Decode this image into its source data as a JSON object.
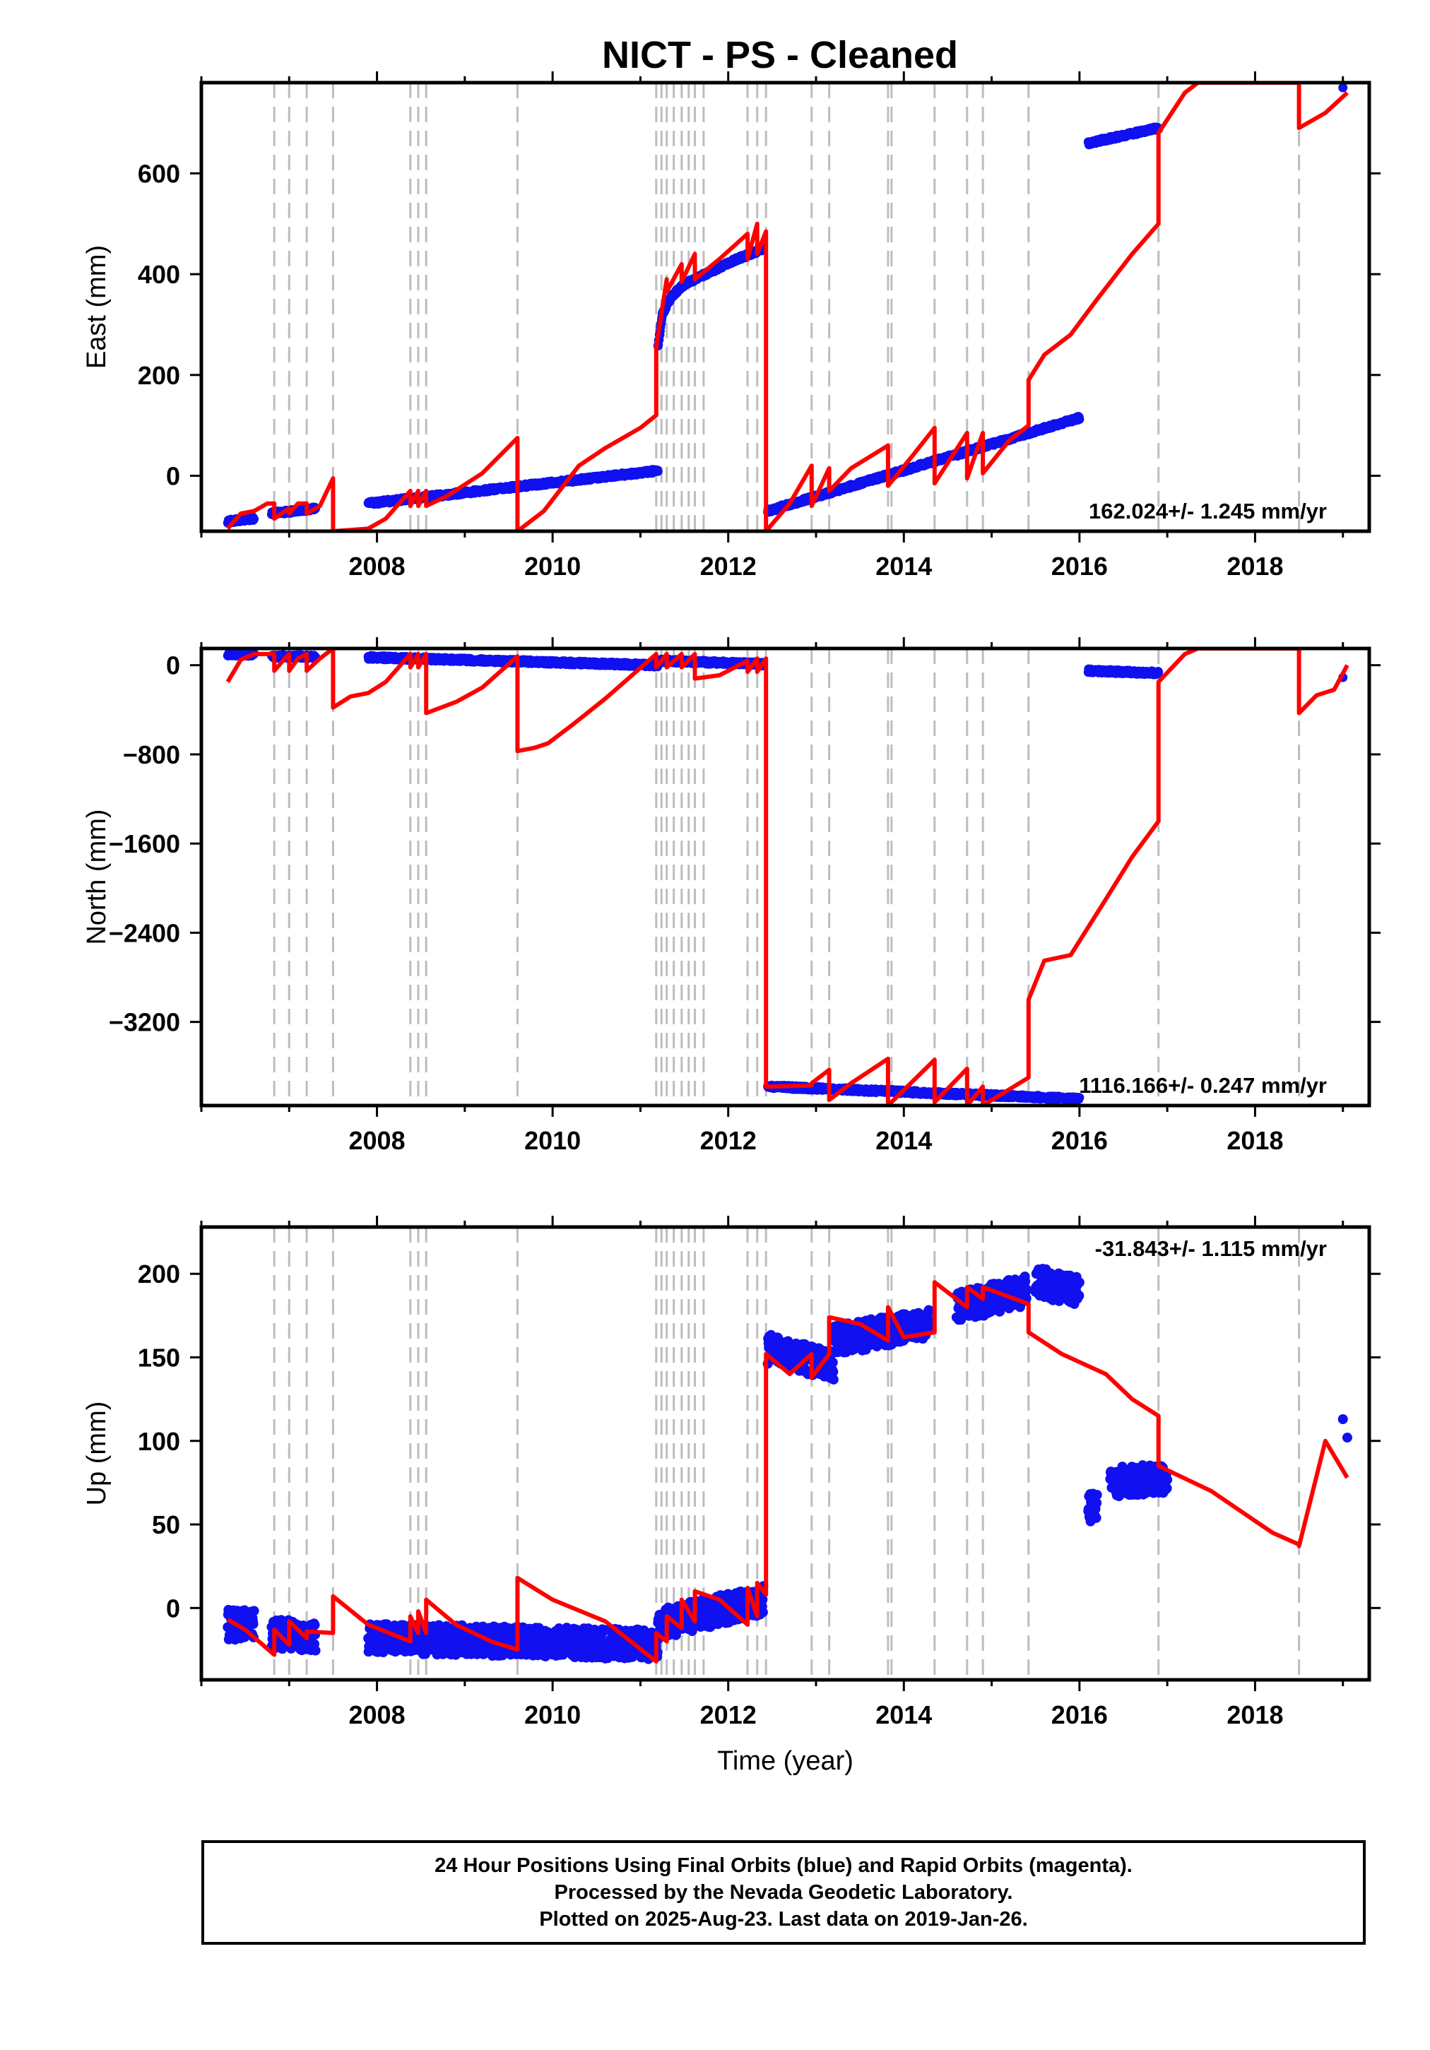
{
  "chart_data": {
    "title": "NICT  - PS - Cleaned",
    "x_axis": {
      "label": "Time (year)",
      "range": [
        2006.0,
        2019.3
      ],
      "ticks": [
        2008,
        2010,
        2012,
        2014,
        2016,
        2018
      ],
      "tick_labels": [
        "2008",
        "2010",
        "2012",
        "2014",
        "2016",
        "2018"
      ]
    },
    "equipment_change_lines": [
      2006.83,
      2007.0,
      2007.2,
      2007.5,
      2008.38,
      2008.47,
      2008.56,
      2009.6,
      2011.18,
      2011.24,
      2011.3,
      2011.38,
      2011.47,
      2011.55,
      2011.62,
      2011.72,
      2012.22,
      2012.33,
      2012.43,
      2012.95,
      2013.15,
      2013.82,
      2013.86,
      2014.35,
      2014.72,
      2014.9,
      2015.42,
      2016.9,
      2018.5
    ],
    "panels": [
      {
        "id": "east",
        "ylabel": "East (mm)",
        "ylim": [
          -110,
          780
        ],
        "yticks": [
          0,
          200,
          400,
          600
        ],
        "ytick_labels": [
          "0",
          "200",
          "400",
          "600"
        ],
        "rate_label": "162.024+/- 1.245 mm/yr",
        "rate_position": "bottom-right",
        "observations": [
          {
            "x": [
              2006.3,
              2006.6
            ],
            "y": [
              -90,
              -85
            ]
          },
          {
            "x": [
              2006.8,
              2007.3
            ],
            "y": [
              -75,
              -65
            ]
          },
          {
            "x": [
              2007.9,
              2011.2
            ],
            "y": [
              -55,
              10
            ]
          },
          {
            "x": [
              2011.2,
              2011.25,
              2011.35,
              2011.5,
              2011.8,
              2012.1,
              2012.4
            ],
            "y": [
              255,
              320,
              355,
              380,
              405,
              430,
              450
            ]
          },
          {
            "x": [
              2012.45,
              2016.0
            ],
            "y": [
              -70,
              115
            ]
          },
          {
            "x": [
              2016.1,
              2016.9
            ],
            "y": [
              660,
              690
            ]
          },
          {
            "x": [
              2019.0
            ],
            "y": [
              770
            ]
          }
        ],
        "model": {
          "x": [
            2006.3,
            2006.45,
            2006.6,
            2006.75,
            2006.83,
            2006.83,
            2006.95,
            2007.0,
            2007.0,
            2007.1,
            2007.2,
            2007.2,
            2007.35,
            2007.5,
            2007.5,
            2007.9,
            2008.1,
            2008.38,
            2008.38,
            2008.47,
            2008.47,
            2008.56,
            2008.56,
            2008.8,
            2009.2,
            2009.6,
            2009.6,
            2009.9,
            2010.3,
            2010.6,
            2011.0,
            2011.18,
            2011.18,
            2011.3,
            2011.3,
            2011.47,
            2011.47,
            2011.62,
            2011.62,
            2011.9,
            2012.22,
            2012.22,
            2012.33,
            2012.33,
            2012.43,
            2012.43,
            2012.7,
            2012.95,
            2012.95,
            2013.15,
            2013.15,
            2013.4,
            2013.82,
            2013.82,
            2014.1,
            2014.35,
            2014.35,
            2014.72,
            2014.72,
            2014.9,
            2014.9,
            2015.2,
            2015.42,
            2015.42,
            2015.6,
            2015.9,
            2016.2,
            2016.6,
            2016.9,
            2016.9,
            2017.2,
            2017.35,
            2018.5,
            2018.5,
            2018.8,
            2019.05
          ],
          "y": [
            -105,
            -75,
            -70,
            -55,
            -55,
            -85,
            -70,
            -65,
            -75,
            -55,
            -55,
            -75,
            -60,
            -5,
            -110,
            -105,
            -85,
            -30,
            -60,
            -30,
            -60,
            -30,
            -60,
            -40,
            5,
            75,
            -110,
            -70,
            20,
            55,
            95,
            120,
            255,
            390,
            365,
            420,
            385,
            440,
            390,
            430,
            480,
            430,
            500,
            440,
            485,
            -110,
            -55,
            20,
            -60,
            15,
            -30,
            15,
            60,
            -20,
            40,
            95,
            -15,
            85,
            -5,
            85,
            5,
            70,
            100,
            190,
            240,
            280,
            350,
            440,
            500,
            680,
            760,
            780,
            780,
            690,
            720,
            760
          ]
        }
      },
      {
        "id": "north",
        "ylabel": "North (mm)",
        "ylim": [
          -3950,
          150
        ],
        "yticks": [
          0,
          -800,
          -1600,
          -2400,
          -3200
        ],
        "ytick_labels": [
          "0",
          "−800",
          "−1600",
          "−2400",
          "−3200"
        ],
        "rate_label": "1116.166+/- 0.247 mm/yr",
        "rate_position": "bottom-right",
        "observations": [
          {
            "x": [
              2006.3,
              2006.6
            ],
            "y": [
              100,
              95
            ]
          },
          {
            "x": [
              2006.8,
              2007.3
            ],
            "y": [
              80,
              75
            ]
          },
          {
            "x": [
              2007.9,
              2011.2
            ],
            "y": [
              70,
              0
            ]
          },
          {
            "x": [
              2011.2,
              2012.4
            ],
            "y": [
              40,
              10
            ]
          },
          {
            "x": [
              2012.45,
              2016.0
            ],
            "y": [
              -3780,
              -3890
            ]
          },
          {
            "x": [
              2016.1,
              2016.9
            ],
            "y": [
              -50,
              -70
            ]
          },
          {
            "x": [
              2019.0
            ],
            "y": [
              -110
            ]
          }
        ],
        "model": {
          "x": [
            2006.3,
            2006.45,
            2006.6,
            2006.83,
            2006.83,
            2006.95,
            2007.0,
            2007.0,
            2007.1,
            2007.2,
            2007.2,
            2007.35,
            2007.5,
            2007.5,
            2007.7,
            2007.9,
            2008.1,
            2008.38,
            2008.38,
            2008.47,
            2008.47,
            2008.56,
            2008.56,
            2008.9,
            2009.2,
            2009.6,
            2009.6,
            2009.8,
            2009.95,
            2010.25,
            2010.6,
            2011.18,
            2011.18,
            2011.3,
            2011.3,
            2011.47,
            2011.47,
            2011.62,
            2011.62,
            2011.9,
            2012.22,
            2012.22,
            2012.33,
            2012.33,
            2012.43,
            2012.43,
            2012.95,
            2012.95,
            2013.15,
            2013.15,
            2013.4,
            2013.82,
            2013.82,
            2014.35,
            2014.35,
            2014.72,
            2014.72,
            2014.9,
            2014.9,
            2015.42,
            2015.42,
            2015.6,
            2015.9,
            2016.3,
            2016.6,
            2016.9,
            2016.9,
            2017.2,
            2017.35,
            2018.5,
            2018.5,
            2018.7,
            2018.9,
            2019.05
          ],
          "y": [
            -150,
            50,
            100,
            100,
            -50,
            60,
            100,
            -50,
            60,
            100,
            -50,
            60,
            150,
            -380,
            -280,
            -250,
            -150,
            100,
            -20,
            100,
            -20,
            100,
            -430,
            -330,
            -200,
            80,
            -770,
            -740,
            -700,
            -520,
            -300,
            100,
            -20,
            100,
            -20,
            100,
            -20,
            100,
            -120,
            -90,
            40,
            -60,
            60,
            -60,
            60,
            -3780,
            -3770,
            -3750,
            -3630,
            -3900,
            -3750,
            -3530,
            -3950,
            -3540,
            -3920,
            -3620,
            -3950,
            -3780,
            -3950,
            -3700,
            -3000,
            -2650,
            -2600,
            -2100,
            -1720,
            -1400,
            -150,
            100,
            150,
            150,
            -430,
            -270,
            -220,
            0
          ]
        }
      },
      {
        "id": "up",
        "ylabel": "Up (mm)",
        "ylim": [
          -43,
          228
        ],
        "yticks": [
          0,
          50,
          100,
          150,
          200
        ],
        "ytick_labels": [
          "0",
          "50",
          "100",
          "150",
          "200"
        ],
        "rate_label": "-31.843+/- 1.115 mm/yr",
        "rate_position": "top-right",
        "observations": [
          {
            "x": [
              2006.3,
              2006.6
            ],
            "y": [
              -10,
              -10
            ]
          },
          {
            "x": [
              2006.8,
              2007.3
            ],
            "y": [
              -15,
              -18
            ]
          },
          {
            "x": [
              2007.9,
              2011.2
            ],
            "y": [
              -18,
              -22
            ]
          },
          {
            "x": [
              2011.2,
              2012.4
            ],
            "y": [
              -10,
              5
            ]
          },
          {
            "x": [
              2012.45,
              2013.2
            ],
            "y": [
              155,
              145
            ]
          },
          {
            "x": [
              2013.2,
              2014.3
            ],
            "y": [
              160,
              170
            ]
          },
          {
            "x": [
              2014.6,
              2015.4
            ],
            "y": [
              180,
              190
            ]
          },
          {
            "x": [
              2015.5,
              2016.0
            ],
            "y": [
              195,
              190
            ]
          },
          {
            "x": [
              2016.1,
              2016.2
            ],
            "y": [
              60,
              60
            ]
          },
          {
            "x": [
              2016.35,
              2017.0
            ],
            "y": [
              75,
              78
            ]
          },
          {
            "x": [
              2019.0
            ],
            "y": [
              113
            ]
          },
          {
            "x": [
              2019.05
            ],
            "y": [
              102
            ]
          }
        ],
        "model": {
          "x": [
            2006.3,
            2006.5,
            2006.83,
            2006.83,
            2007.0,
            2007.0,
            2007.2,
            2007.2,
            2007.5,
            2007.5,
            2007.9,
            2008.38,
            2008.38,
            2008.47,
            2008.47,
            2008.56,
            2008.56,
            2008.9,
            2009.3,
            2009.6,
            2009.6,
            2010.0,
            2010.6,
            2011.18,
            2011.18,
            2011.3,
            2011.3,
            2011.47,
            2011.47,
            2011.62,
            2011.62,
            2011.9,
            2012.22,
            2012.22,
            2012.33,
            2012.33,
            2012.43,
            2012.43,
            2012.7,
            2012.95,
            2012.95,
            2013.15,
            2013.15,
            2013.5,
            2013.82,
            2013.82,
            2014.0,
            2014.35,
            2014.35,
            2014.72,
            2014.72,
            2014.9,
            2014.9,
            2015.42,
            2015.42,
            2015.8,
            2016.3,
            2016.6,
            2016.9,
            2016.9,
            2017.5,
            2018.2,
            2018.5,
            2018.5,
            2018.8,
            2019.05
          ],
          "y": [
            -7,
            -13,
            -28,
            -13,
            -22,
            -8,
            -18,
            -14,
            -15,
            7,
            -10,
            -20,
            -5,
            -15,
            -2,
            -15,
            5,
            -10,
            -20,
            -25,
            18,
            5,
            -8,
            -32,
            -15,
            -20,
            -5,
            -12,
            5,
            -8,
            10,
            5,
            -10,
            12,
            -5,
            15,
            8,
            152,
            140,
            152,
            138,
            152,
            174,
            170,
            160,
            180,
            162,
            165,
            195,
            180,
            192,
            185,
            192,
            182,
            165,
            152,
            140,
            125,
            115,
            85,
            70,
            45,
            38,
            37,
            100,
            78
          ]
        }
      }
    ],
    "caption": [
      "24 Hour Positions Using Final Orbits (blue) and Rapid Orbits (magenta).",
      "Processed by the Nevada Geodetic Laboratory.",
      "Plotted on 2025-Aug-23. Last data on 2019-Jan-26."
    ],
    "colors": {
      "observations": "#1010f0",
      "model": "#ff0000",
      "event_lines": "#bdbdbd",
      "frame": "#000000"
    }
  }
}
